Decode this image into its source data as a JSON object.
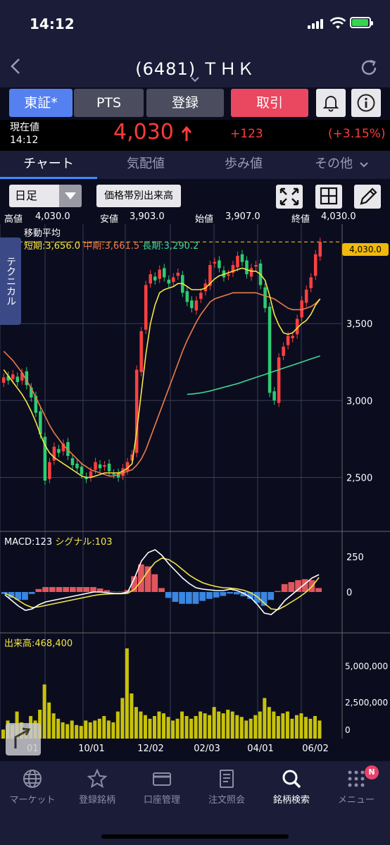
{
  "status_bar": {
    "time": "14:12"
  },
  "header": {
    "title": "(6481) ＴＨＫ"
  },
  "buttons": {
    "tosho": "東証*",
    "pts": "PTS",
    "register": "登録",
    "trade": "取引"
  },
  "price": {
    "label": "現在値",
    "time": "14:12",
    "value": "4,030",
    "change": "+123",
    "change_pct": "(+3.15%)"
  },
  "tabs": [
    "チャート",
    "気配値",
    "歩み値",
    "その他"
  ],
  "toolbar": {
    "period": "日足",
    "volume_by_price": "価格帯別出来高"
  },
  "ohlc": {
    "high_label": "高値",
    "high": "4,030.0",
    "low_label": "安値",
    "low": "3,903.0",
    "open_label": "始値",
    "open": "3,907.0",
    "close_label": "終値",
    "close": "4,030.0"
  },
  "moving_average": {
    "title": "移動平均",
    "short": "短期:3,656.0",
    "mid": "中期:3,661.5",
    "long": "長期:3,290.2"
  },
  "side_tab": "テクニカル",
  "macd": {
    "macd": "MACD:123",
    "signal": "シグナル:103"
  },
  "volume": {
    "label": "出来高:468,400"
  },
  "price_tag": "4,030.0",
  "chart_data": {
    "type": "candlestick",
    "y_axis_ticks": [
      "3,500",
      "3,000",
      "2,500"
    ],
    "macd_ticks": [
      "250",
      "0"
    ],
    "volume_ticks": [
      "5,000,000",
      "2,500,000",
      "0"
    ],
    "x_axis_ticks": [
      "10/01",
      "12/02",
      "02/03",
      "04/01",
      "06/02"
    ],
    "first_x_label_fragment": "01",
    "ylim": [
      2150,
      4100
    ],
    "colors": {
      "up": "#ff4040",
      "down": "#2ecc71",
      "ma_short": "#f5e642",
      "ma_mid": "#f07a4a",
      "ma_long": "#3ed893",
      "macd": "#ffffff",
      "signal": "#f5e642",
      "volume": "#c8c20a"
    },
    "closes": [
      3150,
      3130,
      3170,
      3120,
      3180,
      3100,
      3020,
      2920,
      2780,
      2480,
      2600,
      2700,
      2660,
      2720,
      2640,
      2580,
      2560,
      2520,
      2490,
      2540,
      2600,
      2560,
      2580,
      2540,
      2520,
      2500,
      2560,
      2600,
      2650,
      3200,
      3450,
      3750,
      3820,
      3780,
      3850,
      3800,
      3760,
      3800,
      3830,
      3700,
      3640,
      3600,
      3650,
      3700,
      3760,
      3880,
      3900,
      3860,
      3800,
      3820,
      3880,
      3940,
      3900,
      3820,
      3860,
      3880,
      3750,
      3600,
      3050,
      3000,
      3280,
      3350,
      3420,
      3420,
      3530,
      3650,
      3720,
      3800,
      3950,
      4030
    ],
    "ma_short": [
      3200,
      3160,
      3120,
      3080,
      3040,
      2990,
      2930,
      2860,
      2780,
      2710,
      2660,
      2630,
      2610,
      2590,
      2570,
      2550,
      2530,
      2510,
      2500,
      2500,
      2510,
      2520,
      2530,
      2530,
      2530,
      2530,
      2540,
      2560,
      2590,
      2800,
      3050,
      3300,
      3500,
      3620,
      3700,
      3720,
      3730,
      3740,
      3760,
      3760,
      3740,
      3720,
      3720,
      3720,
      3730,
      3760,
      3790,
      3810,
      3820,
      3830,
      3840,
      3850,
      3860,
      3850,
      3840,
      3840,
      3820,
      3780,
      3680,
      3560,
      3490,
      3440,
      3430,
      3440,
      3470,
      3500,
      3520,
      3560,
      3620,
      3660
    ],
    "ma_mid": [
      3320,
      3290,
      3260,
      3220,
      3180,
      3130,
      3080,
      3020,
      2960,
      2900,
      2840,
      2790,
      2750,
      2710,
      2680,
      2650,
      2620,
      2590,
      2570,
      2550,
      2540,
      2530,
      2520,
      2510,
      2510,
      2520,
      2530,
      2540,
      2550,
      2580,
      2620,
      2680,
      2760,
      2840,
      2920,
      3000,
      3080,
      3160,
      3240,
      3320,
      3390,
      3450,
      3510,
      3560,
      3600,
      3640,
      3660,
      3670,
      3680,
      3690,
      3700,
      3700,
      3700,
      3700,
      3700,
      3700,
      3690,
      3680,
      3670,
      3660,
      3640,
      3620,
      3600,
      3590,
      3590,
      3590,
      3600,
      3610,
      3630,
      3661
    ],
    "ma_long": [
      3040,
      3042,
      3046,
      3050,
      3056,
      3062,
      3070,
      3078,
      3086,
      3094,
      3102,
      3110,
      3120,
      3130,
      3140,
      3150,
      3160,
      3170,
      3180,
      3190,
      3200,
      3210,
      3220,
      3230,
      3240,
      3250,
      3260,
      3270,
      3280,
      3290
    ],
    "macd": [
      -20,
      -60,
      -100,
      -130,
      -120,
      -90,
      -70,
      -60,
      -50,
      -40,
      -30,
      -20,
      -10,
      0,
      0,
      -5,
      -10,
      -10,
      0,
      100,
      220,
      280,
      300,
      260,
      200,
      150,
      100,
      60,
      30,
      20,
      15,
      10,
      10,
      20,
      10,
      -10,
      -40,
      -90,
      -150,
      -160,
      -120,
      -60,
      -20,
      20,
      60,
      100,
      123
    ],
    "signal": [
      -10,
      -30,
      -60,
      -90,
      -110,
      -105,
      -95,
      -85,
      -75,
      -65,
      -55,
      -45,
      -35,
      -25,
      -18,
      -14,
      -12,
      -12,
      -10,
      20,
      80,
      150,
      210,
      240,
      230,
      200,
      160,
      120,
      90,
      65,
      50,
      38,
      30,
      28,
      22,
      12,
      -5,
      -35,
      -80,
      -120,
      -125,
      -100,
      -70,
      -40,
      -5,
      40,
      103
    ],
    "volume_ratio": [
      0.1,
      0.2,
      0.15,
      0.3,
      0.18,
      0.12,
      0.25,
      0.2,
      0.32,
      0.6,
      0.4,
      0.28,
      0.22,
      0.18,
      0.16,
      0.2,
      0.15,
      0.14,
      0.2,
      0.18,
      0.2,
      0.22,
      0.25,
      0.2,
      0.18,
      0.3,
      0.45,
      1.0,
      0.5,
      0.35,
      0.3,
      0.26,
      0.22,
      0.25,
      0.3,
      0.28,
      0.24,
      0.2,
      0.22,
      0.3,
      0.25,
      0.22,
      0.25,
      0.3,
      0.28,
      0.26,
      0.35,
      0.3,
      0.28,
      0.32,
      0.3,
      0.26,
      0.24,
      0.2,
      0.22,
      0.26,
      0.3,
      0.45,
      0.35,
      0.3,
      0.25,
      0.28,
      0.3,
      0.22,
      0.26,
      0.28,
      0.24,
      0.22,
      0.25,
      0.2
    ]
  },
  "bottom_nav": [
    "マーケット",
    "登録銘柄",
    "口座管理",
    "注文照会",
    "銘柄検索",
    "メニュー"
  ],
  "badge": "N"
}
